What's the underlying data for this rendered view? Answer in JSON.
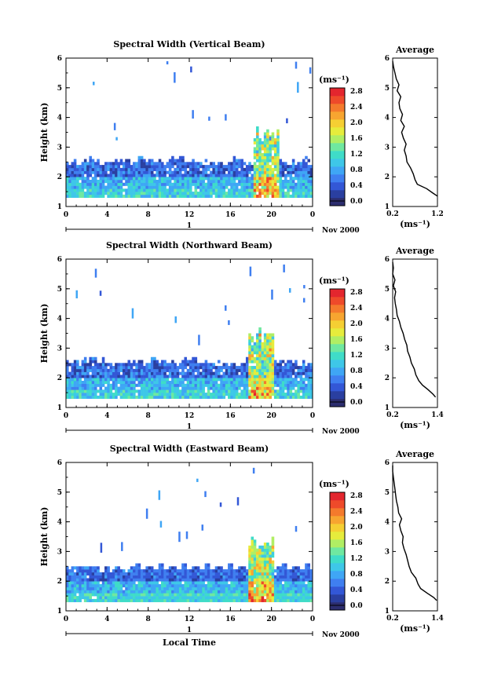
{
  "colors": {
    "scale": [
      "#2c2d6e",
      "#2a3fa0",
      "#3357d6",
      "#3f7ff0",
      "#3fa6f5",
      "#3ec7e8",
      "#3fdcc8",
      "#6fe8a0",
      "#b0ee64",
      "#e6ec3c",
      "#f5cf33",
      "#f7a530",
      "#f47a2c",
      "#ee4a2a",
      "#e3262e"
    ]
  },
  "chart_data": [
    {
      "type": "heatmap",
      "title": "Spectral Width (Vertical Beam)",
      "ylabel": "Height (km)",
      "xlabel": "",
      "x_ticks": [
        "0",
        "4",
        "8",
        "12",
        "16",
        "20",
        "0"
      ],
      "y_ticks": [
        "1",
        "2",
        "3",
        "4",
        "5",
        "6"
      ],
      "xlim": [
        0,
        24
      ],
      "ylim": [
        1,
        6
      ],
      "date_tick": "1",
      "date_label": "Nov 2000",
      "colorbar": {
        "unit": "(ms⁻¹)",
        "ticks": [
          "0.0",
          "0.4",
          "0.8",
          "1.2",
          "1.6",
          "2.0",
          "2.4",
          "2.8"
        ],
        "range": [
          0,
          3.0
        ]
      },
      "layer_top_km": 2.55,
      "convection_hour": 19.5,
      "profile": {
        "title": "Average",
        "xlabel": "(ms⁻¹)",
        "x_ticks": [
          "0.2",
          "1.2"
        ],
        "xlim": [
          0.2,
          1.2
        ],
        "y_ticks": [
          "1",
          "2",
          "3",
          "4",
          "5",
          "6"
        ],
        "heights": [
          1.35,
          1.45,
          1.6,
          1.75,
          1.9,
          2.1,
          2.3,
          2.5,
          2.7,
          2.9,
          3.1,
          3.3,
          3.5,
          3.7,
          3.9,
          4.1,
          4.3,
          4.5,
          4.7,
          4.9,
          5.1,
          5.3,
          5.5,
          5.7,
          5.9
        ],
        "values": [
          1.2,
          1.1,
          0.96,
          0.75,
          0.7,
          0.66,
          0.6,
          0.52,
          0.5,
          0.46,
          0.5,
          0.44,
          0.4,
          0.46,
          0.38,
          0.42,
          0.36,
          0.34,
          0.38,
          0.3,
          0.34,
          0.28,
          0.25,
          0.22,
          0.2
        ]
      }
    },
    {
      "type": "heatmap",
      "title": "Spectral Width (Northward Beam)",
      "ylabel": "Height (km)",
      "xlabel": "",
      "x_ticks": [
        "0",
        "4",
        "8",
        "12",
        "16",
        "20",
        "0"
      ],
      "y_ticks": [
        "1",
        "2",
        "3",
        "4",
        "5",
        "6"
      ],
      "xlim": [
        0,
        24
      ],
      "ylim": [
        1,
        6
      ],
      "date_tick": "1",
      "date_label": "Nov 2000",
      "colorbar": {
        "unit": "(ms⁻¹)",
        "ticks": [
          "0.0",
          "0.4",
          "0.8",
          "1.2",
          "1.6",
          "2.0",
          "2.4",
          "2.8"
        ],
        "range": [
          0,
          3.0
        ]
      },
      "layer_top_km": 2.55,
      "convection_hour": 19.0,
      "profile": {
        "title": "Average",
        "xlabel": "(ms⁻¹)",
        "x_ticks": [
          "0.2",
          "1.4"
        ],
        "xlim": [
          0.2,
          1.4
        ],
        "y_ticks": [
          "1",
          "2",
          "3",
          "4",
          "5",
          "6"
        ],
        "heights": [
          1.35,
          1.45,
          1.6,
          1.75,
          1.9,
          2.1,
          2.3,
          2.5,
          2.7,
          2.9,
          3.1,
          3.3,
          3.5,
          3.7,
          3.9,
          4.1,
          4.3,
          4.5,
          4.7,
          4.9,
          5.1,
          5.3,
          5.5,
          5.7,
          5.9
        ],
        "values": [
          1.35,
          1.28,
          1.15,
          1.0,
          0.9,
          0.82,
          0.78,
          0.7,
          0.66,
          0.6,
          0.58,
          0.52,
          0.48,
          0.42,
          0.38,
          0.32,
          0.3,
          0.27,
          0.25,
          0.28,
          0.22,
          0.26,
          0.2,
          0.22,
          0.2
        ]
      }
    },
    {
      "type": "heatmap",
      "title": "Spectral Width (Eastward Beam)",
      "ylabel": "Height (km)",
      "xlabel": "Local Time",
      "x_ticks": [
        "0",
        "4",
        "8",
        "12",
        "16",
        "20",
        "0"
      ],
      "y_ticks": [
        "1",
        "2",
        "3",
        "4",
        "5",
        "6"
      ],
      "xlim": [
        0,
        24
      ],
      "ylim": [
        1,
        6
      ],
      "date_tick": "1",
      "date_label": "Nov 2000",
      "colorbar": {
        "unit": "(ms⁻¹)",
        "ticks": [
          "0.0",
          "0.4",
          "0.8",
          "1.2",
          "1.6",
          "2.0",
          "2.4",
          "2.8"
        ],
        "range": [
          0,
          3.0
        ]
      },
      "layer_top_km": 2.45,
      "convection_hour": 19.0,
      "profile": {
        "title": "Average",
        "xlabel": "(ms⁻¹)",
        "x_ticks": [
          "0.2",
          "1.4"
        ],
        "xlim": [
          0.2,
          1.4
        ],
        "y_ticks": [
          "1",
          "2",
          "3",
          "4",
          "5",
          "6"
        ],
        "heights": [
          1.35,
          1.45,
          1.6,
          1.75,
          1.9,
          2.1,
          2.3,
          2.5,
          2.7,
          2.9,
          3.1,
          3.3,
          3.5,
          3.7,
          3.9,
          4.1,
          4.3,
          4.5,
          4.7,
          4.9,
          5.1,
          5.3,
          5.5,
          5.7,
          5.9
        ],
        "values": [
          1.38,
          1.3,
          1.12,
          0.95,
          0.88,
          0.82,
          0.7,
          0.64,
          0.6,
          0.56,
          0.5,
          0.46,
          0.48,
          0.42,
          0.38,
          0.44,
          0.36,
          0.34,
          0.3,
          0.28,
          0.26,
          0.24,
          0.22,
          0.2,
          0.2
        ]
      }
    }
  ]
}
